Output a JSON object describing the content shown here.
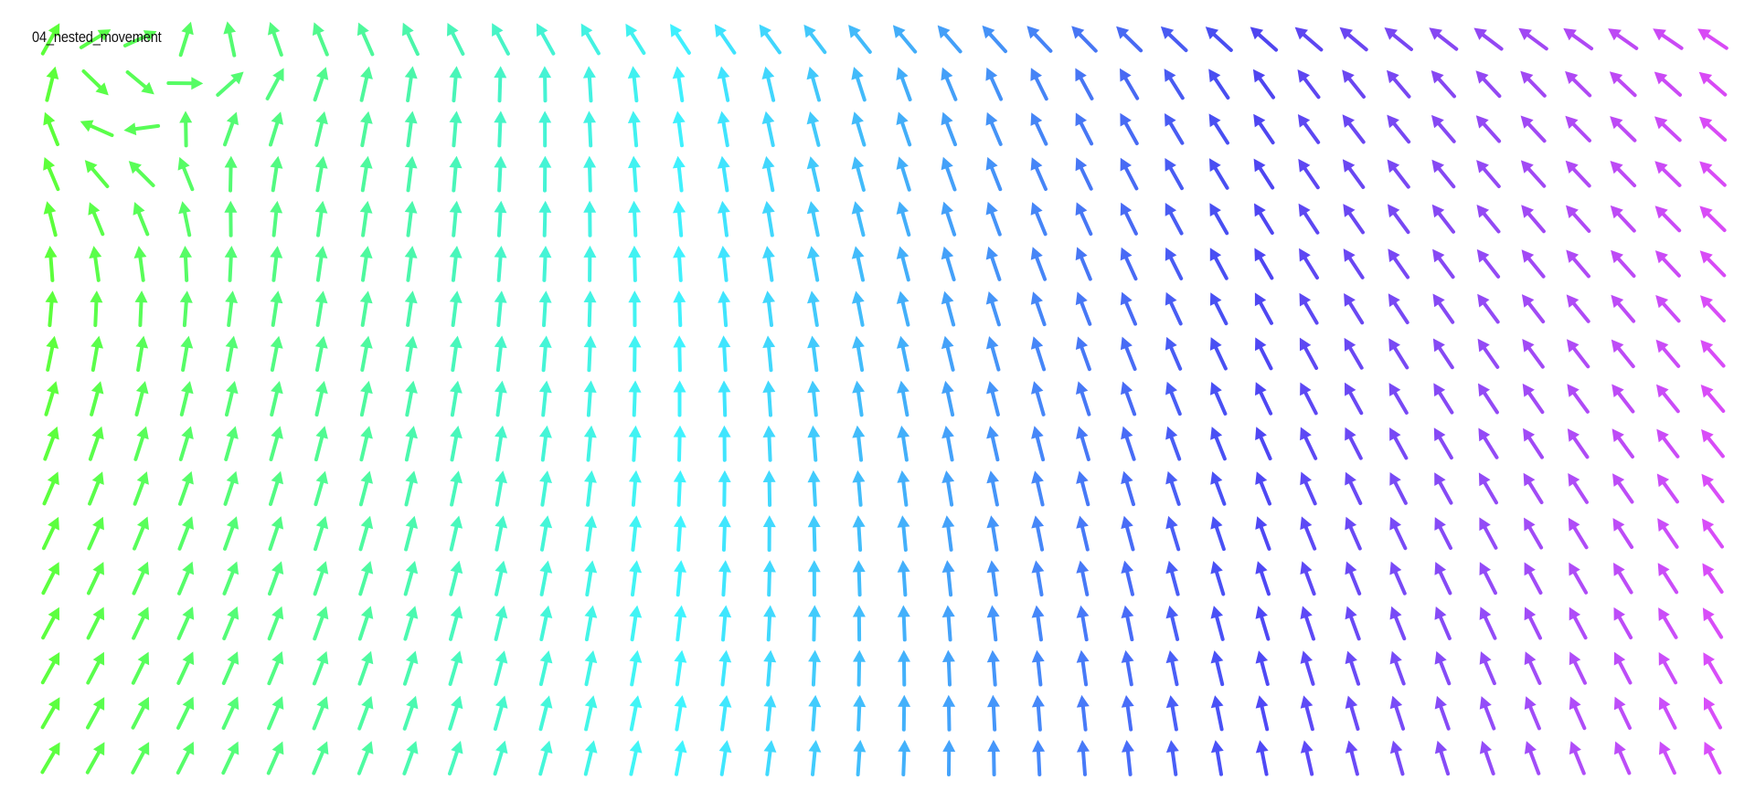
{
  "sketch": {
    "title": "04_nested_movement"
  },
  "field": {
    "columns": 38,
    "rows": 17,
    "colors": {
      "left": "#5cff3a",
      "middle": "#3ff0ff",
      "right_center": "#4a45f0",
      "right": "#d84af5"
    },
    "arrow_icon": "arrow-icon"
  }
}
